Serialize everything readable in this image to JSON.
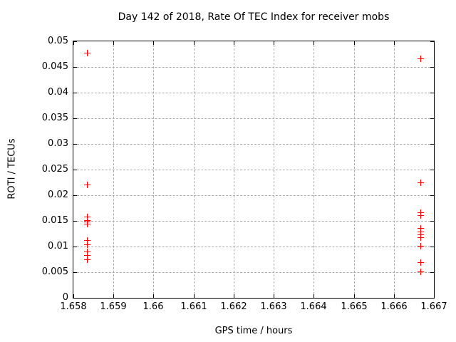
{
  "chart_data": {
    "type": "scatter",
    "title": "Day 142 of 2018, Rate Of TEC Index for receiver mobs",
    "xlabel": "GPS time / hours",
    "ylabel": "ROTI / TECUs",
    "xlim": [
      1.658,
      1.667
    ],
    "ylim": [
      0,
      0.05
    ],
    "x_ticks": [
      "1.658",
      "1.659",
      "1.66",
      "1.661",
      "1.662",
      "1.663",
      "1.664",
      "1.665",
      "1.666",
      "1.667"
    ],
    "y_ticks": [
      "0",
      "0.005",
      "0.01",
      "0.015",
      "0.02",
      "0.025",
      "0.03",
      "0.035",
      "0.04",
      "0.045",
      "0.05"
    ],
    "grid": true,
    "legend": "none",
    "marker": "plus",
    "marker_color": "#ff0000",
    "grid_color": "#aaaaaa",
    "series": [
      {
        "name": "ROTI",
        "points": [
          {
            "x": 1.65834,
            "y": 0.0478
          },
          {
            "x": 1.65834,
            "y": 0.0221
          },
          {
            "x": 1.65834,
            "y": 0.0158
          },
          {
            "x": 1.65834,
            "y": 0.0151
          },
          {
            "x": 1.65834,
            "y": 0.0148
          },
          {
            "x": 1.65834,
            "y": 0.0144
          },
          {
            "x": 1.65834,
            "y": 0.0113
          },
          {
            "x": 1.65834,
            "y": 0.0104
          },
          {
            "x": 1.65834,
            "y": 0.009
          },
          {
            "x": 1.65834,
            "y": 0.0084
          },
          {
            "x": 1.65834,
            "y": 0.0075
          },
          {
            "x": 1.66666,
            "y": 0.0467
          },
          {
            "x": 1.66666,
            "y": 0.0225
          },
          {
            "x": 1.66666,
            "y": 0.0166
          },
          {
            "x": 1.66666,
            "y": 0.0161
          },
          {
            "x": 1.66666,
            "y": 0.0136
          },
          {
            "x": 1.66666,
            "y": 0.0129
          },
          {
            "x": 1.66666,
            "y": 0.0123
          },
          {
            "x": 1.66666,
            "y": 0.0118
          },
          {
            "x": 1.66666,
            "y": 0.0102
          },
          {
            "x": 1.66666,
            "y": 0.007
          },
          {
            "x": 1.66666,
            "y": 0.0051
          }
        ]
      }
    ]
  }
}
